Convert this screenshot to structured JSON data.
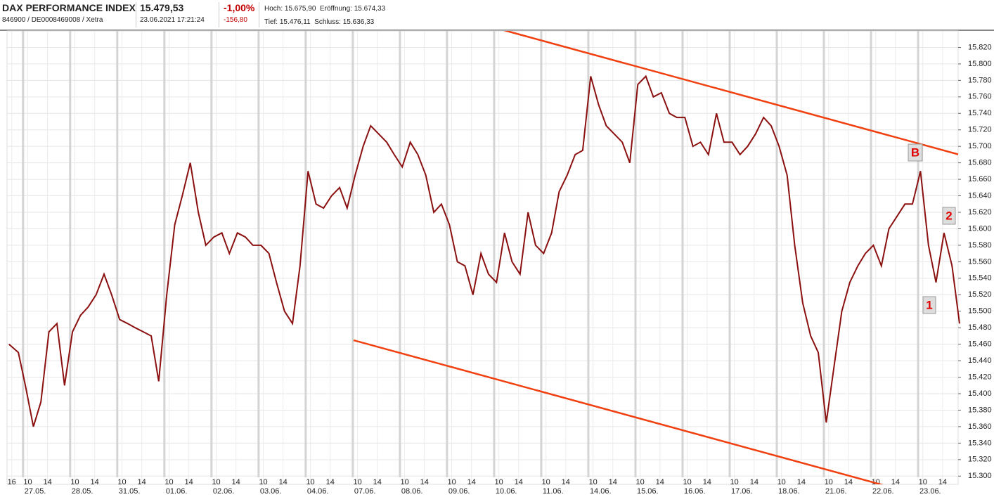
{
  "header": {
    "name": "DAX PERFORMANCE INDEX",
    "ids": "846900 / DE0008469008 / Xetra",
    "price": "15.479,53",
    "timestamp": "23.06.2021 17:21:24",
    "change_pct": "-1,00%",
    "change_abs": "-156,80",
    "high": "Hoch: 15.675,90",
    "open": "Eröffnung: 15.674,33",
    "low": "Tief: 15.476,11",
    "close": "Schluss: 15.636,33"
  },
  "chart_data": {
    "type": "line",
    "color": "#8b1010",
    "x": [
      -0.3,
      -0.1,
      0.05,
      0.22,
      0.38,
      0.55,
      0.72,
      0.88,
      1.05,
      1.22,
      1.38,
      1.55,
      1.72,
      1.88,
      2.05,
      2.22,
      2.38,
      2.55,
      2.72,
      2.88,
      3.05,
      3.22,
      3.38,
      3.55,
      3.72,
      3.88,
      4.05,
      4.22,
      4.38,
      4.55,
      4.72,
      4.88,
      5.05,
      5.22,
      5.38,
      5.55,
      5.72,
      5.88,
      6.05,
      6.22,
      6.38,
      6.55,
      6.72,
      6.88,
      7.05,
      7.22,
      7.38,
      7.55,
      7.72,
      7.88,
      8.05,
      8.22,
      8.38,
      8.55,
      8.72,
      8.88,
      9.05,
      9.22,
      9.38,
      9.55,
      9.72,
      9.88,
      10.05,
      10.22,
      10.38,
      10.55,
      10.72,
      10.88,
      11.05,
      11.22,
      11.38,
      11.55,
      11.72,
      11.88,
      12.05,
      12.22,
      12.38,
      12.55,
      12.72,
      12.88,
      13.05,
      13.22,
      13.38,
      13.55,
      13.72,
      13.88,
      14.05,
      14.22,
      14.38,
      14.55,
      14.72,
      14.88,
      15.05,
      15.22,
      15.38,
      15.55,
      15.72,
      15.88,
      16.05,
      16.22,
      16.38,
      16.55,
      16.72,
      16.88,
      17.05,
      17.22,
      17.38,
      17.55,
      17.72,
      17.88,
      18.05,
      18.22,
      18.38,
      18.55,
      18.72,
      18.88,
      19.05,
      19.22,
      19.38,
      19.55,
      19.72,
      19.88
    ],
    "values": [
      15460,
      15450,
      15410,
      15360,
      15390,
      15475,
      15485,
      15410,
      15475,
      15495,
      15505,
      15520,
      15545,
      15520,
      15490,
      15485,
      15480,
      15475,
      15470,
      15415,
      15520,
      15605,
      15640,
      15680,
      15620,
      15580,
      15590,
      15595,
      15570,
      15595,
      15590,
      15580,
      15580,
      15570,
      15535,
      15500,
      15485,
      15555,
      15670,
      15630,
      15625,
      15640,
      15650,
      15625,
      15665,
      15700,
      15725,
      15715,
      15705,
      15690,
      15675,
      15705,
      15690,
      15665,
      15620,
      15630,
      15605,
      15560,
      15555,
      15520,
      15570,
      15545,
      15535,
      15595,
      15560,
      15545,
      15620,
      15580,
      15570,
      15595,
      15645,
      15665,
      15690,
      15695,
      15785,
      15750,
      15725,
      15715,
      15705,
      15680,
      15775,
      15785,
      15760,
      15765,
      15740,
      15735,
      15735,
      15700,
      15705,
      15690,
      15740,
      15705,
      15705,
      15690,
      15700,
      15715,
      15735,
      15725,
      15700,
      15665,
      15580,
      15510,
      15470,
      15450,
      15365,
      15435,
      15500,
      15535,
      15555,
      15570,
      15580,
      15555,
      15600,
      15615,
      15630,
      15630,
      15670,
      15580,
      15535,
      15595,
      15555,
      15485
    ],
    "xlim": [
      -0.34,
      19.85
    ],
    "xticks": [
      {
        "value": -0.24,
        "label": "16"
      },
      {
        "value": 0.1,
        "label": "10"
      },
      {
        "value": 0.52,
        "label": "14"
      },
      {
        "value": 1.1,
        "label": "10"
      },
      {
        "value": 1.52,
        "label": "14"
      },
      {
        "value": 2.1,
        "label": "10"
      },
      {
        "value": 2.52,
        "label": "14"
      },
      {
        "value": 3.1,
        "label": "10"
      },
      {
        "value": 3.52,
        "label": "14"
      },
      {
        "value": 4.1,
        "label": "10"
      },
      {
        "value": 4.52,
        "label": "14"
      },
      {
        "value": 5.1,
        "label": "10"
      },
      {
        "value": 5.52,
        "label": "14"
      },
      {
        "value": 6.1,
        "label": "10"
      },
      {
        "value": 6.52,
        "label": "14"
      },
      {
        "value": 7.1,
        "label": "10"
      },
      {
        "value": 7.52,
        "label": "14"
      },
      {
        "value": 8.1,
        "label": "10"
      },
      {
        "value": 8.52,
        "label": "14"
      },
      {
        "value": 9.1,
        "label": "10"
      },
      {
        "value": 9.52,
        "label": "14"
      },
      {
        "value": 10.1,
        "label": "10"
      },
      {
        "value": 10.52,
        "label": "14"
      },
      {
        "value": 11.1,
        "label": "10"
      },
      {
        "value": 11.52,
        "label": "14"
      },
      {
        "value": 12.1,
        "label": "10"
      },
      {
        "value": 12.52,
        "label": "14"
      },
      {
        "value": 13.1,
        "label": "10"
      },
      {
        "value": 13.52,
        "label": "14"
      },
      {
        "value": 14.1,
        "label": "10"
      },
      {
        "value": 14.52,
        "label": "14"
      },
      {
        "value": 15.1,
        "label": "10"
      },
      {
        "value": 15.52,
        "label": "14"
      },
      {
        "value": 16.1,
        "label": "10"
      },
      {
        "value": 16.52,
        "label": "14"
      },
      {
        "value": 17.1,
        "label": "10"
      },
      {
        "value": 17.52,
        "label": "14"
      },
      {
        "value": 18.1,
        "label": "10"
      },
      {
        "value": 18.52,
        "label": "14"
      },
      {
        "value": 19.1,
        "label": "10"
      },
      {
        "value": 19.52,
        "label": "14"
      }
    ],
    "date_ticks": [
      {
        "value": 0,
        "label": "27.05."
      },
      {
        "value": 1,
        "label": "28.05."
      },
      {
        "value": 2,
        "label": "31.05."
      },
      {
        "value": 3,
        "label": "01.06."
      },
      {
        "value": 4,
        "label": "02.06."
      },
      {
        "value": 5,
        "label": "03.06."
      },
      {
        "value": 6,
        "label": "04.06."
      },
      {
        "value": 7,
        "label": "07.06."
      },
      {
        "value": 8,
        "label": "08.06."
      },
      {
        "value": 9,
        "label": "09.06."
      },
      {
        "value": 10,
        "label": "10.06."
      },
      {
        "value": 11,
        "label": "11.06."
      },
      {
        "value": 12,
        "label": "14.06."
      },
      {
        "value": 13,
        "label": "15.06."
      },
      {
        "value": 14,
        "label": "16.06."
      },
      {
        "value": 15,
        "label": "17.06."
      },
      {
        "value": 16,
        "label": "18.06."
      },
      {
        "value": 17,
        "label": "21.06."
      },
      {
        "value": 18,
        "label": "22.06."
      },
      {
        "value": 19,
        "label": "23.06."
      }
    ],
    "ylim": [
      15290,
      15840
    ],
    "yticks": [
      {
        "value": 15300,
        "label": "15.300"
      },
      {
        "value": 15320,
        "label": "15.320"
      },
      {
        "value": 15340,
        "label": "15.340"
      },
      {
        "value": 15360,
        "label": "15.360"
      },
      {
        "value": 15380,
        "label": "15.380"
      },
      {
        "value": 15400,
        "label": "15.400"
      },
      {
        "value": 15420,
        "label": "15.420"
      },
      {
        "value": 15440,
        "label": "15.440"
      },
      {
        "value": 15460,
        "label": "15.460"
      },
      {
        "value": 15480,
        "label": "15.480"
      },
      {
        "value": 15500,
        "label": "15.500"
      },
      {
        "value": 15520,
        "label": "15.520"
      },
      {
        "value": 15540,
        "label": "15.540"
      },
      {
        "value": 15560,
        "label": "15.560"
      },
      {
        "value": 15580,
        "label": "15.580"
      },
      {
        "value": 15600,
        "label": "15.600"
      },
      {
        "value": 15620,
        "label": "15.620"
      },
      {
        "value": 15640,
        "label": "15.640"
      },
      {
        "value": 15660,
        "label": "15.660"
      },
      {
        "value": 15680,
        "label": "15.680"
      },
      {
        "value": 15700,
        "label": "15.700"
      },
      {
        "value": 15720,
        "label": "15.720"
      },
      {
        "value": 15740,
        "label": "15.740"
      },
      {
        "value": 15760,
        "label": "15.760"
      },
      {
        "value": 15780,
        "label": "15.780"
      },
      {
        "value": 15800,
        "label": "15.800"
      },
      {
        "value": 15820,
        "label": "15.820"
      }
    ],
    "grid": true,
    "annotations": [
      "B",
      "2",
      "1"
    ]
  }
}
